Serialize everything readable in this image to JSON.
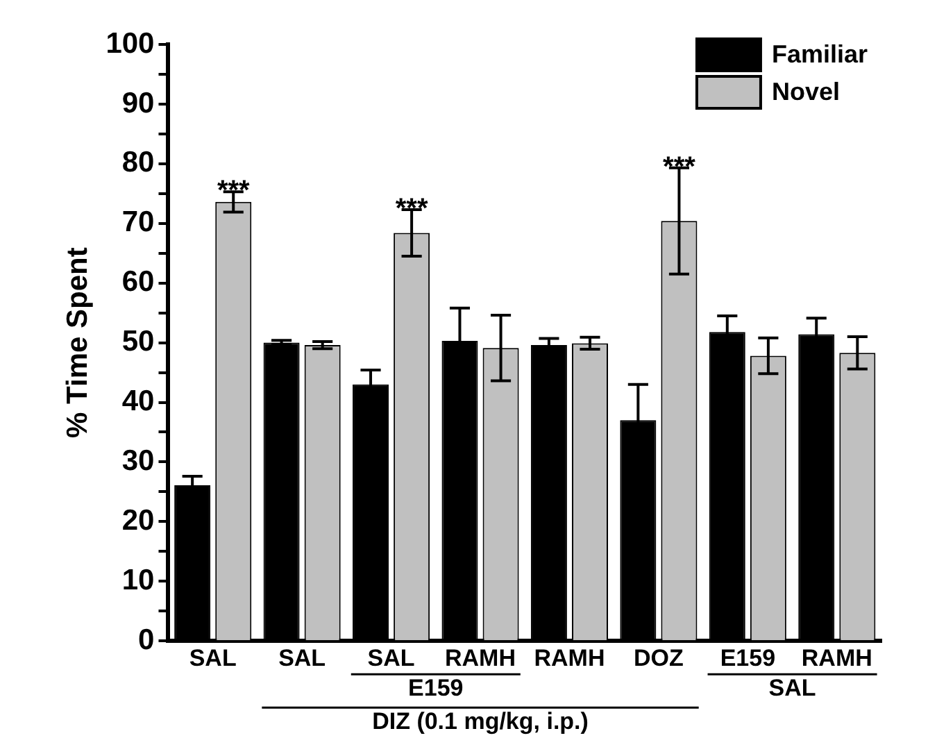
{
  "chart_data": {
    "type": "bar",
    "ylabel": "% Time Spent",
    "categories": [
      "SAL",
      "SAL",
      "SAL",
      "RAMH",
      "RAMH",
      "DOZ",
      "E159",
      "RAMH"
    ],
    "series": [
      {
        "name": "Familiar",
        "color": "#000000",
        "values": [
          26.1,
          50.0,
          43.0,
          50.3,
          49.6,
          37.0,
          51.8,
          51.4
        ],
        "errors": [
          1.5,
          0.4,
          2.4,
          5.5,
          1.1,
          6.0,
          2.7,
          2.7
        ]
      },
      {
        "name": "Novel",
        "color": "#c0c0c0",
        "values": [
          73.6,
          49.6,
          68.4,
          49.1,
          49.9,
          70.4,
          47.8,
          48.3
        ],
        "errors": [
          1.7,
          0.6,
          3.9,
          5.5,
          1.0,
          8.9,
          3.0,
          2.7
        ],
        "value_labels": [
          "***",
          null,
          "***",
          null,
          null,
          "***",
          null,
          null
        ]
      }
    ],
    "ylim": [
      0,
      100
    ],
    "yticks": [
      0,
      {
        "value": 5,
        "label": null
      },
      10,
      {
        "value": 15,
        "label": null
      },
      20,
      {
        "value": 25,
        "label": null
      },
      30,
      {
        "value": 35,
        "label": null
      },
      40,
      {
        "value": 45,
        "label": null
      },
      50,
      {
        "value": 55,
        "label": null
      },
      60,
      {
        "value": 65,
        "label": null
      },
      70,
      {
        "value": 75,
        "label": null
      },
      80,
      {
        "value": 85,
        "label": null
      },
      90,
      {
        "value": 95,
        "label": null
      },
      100
    ],
    "annotations": [
      "E159",
      "DIZ (0.1 mg/kg, i.p.)",
      "SAL"
    ],
    "legend": "top right"
  }
}
